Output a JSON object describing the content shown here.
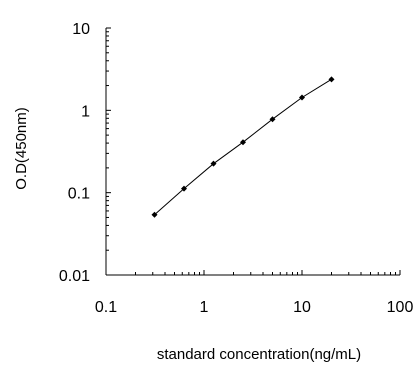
{
  "chart_data": {
    "type": "line",
    "title": "",
    "xlabel": "standard concentration(ng/mL)",
    "ylabel": "O.D(450nm)",
    "x_scale": "log",
    "y_scale": "log",
    "xlim": [
      0.1,
      100
    ],
    "ylim": [
      0.01,
      10
    ],
    "x_ticks": [
      "0.1",
      "1",
      "10",
      "100"
    ],
    "y_ticks": [
      "0.01",
      "0.1",
      "1",
      "10"
    ],
    "grid": false,
    "legend": "none",
    "series": [
      {
        "x": [
          0.3125,
          0.625,
          1.25,
          2.5,
          5,
          10,
          20
        ],
        "y": [
          0.054,
          0.112,
          0.225,
          0.41,
          0.78,
          1.43,
          2.38
        ]
      }
    ],
    "colors": {
      "line": "#000000",
      "marker": "#000000",
      "axis": "#000000"
    }
  }
}
